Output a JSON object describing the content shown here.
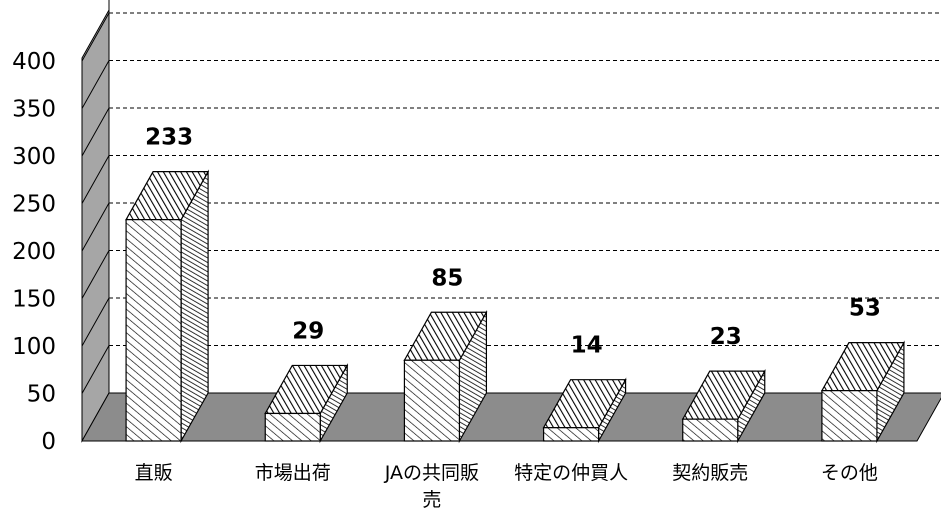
{
  "chart_data": {
    "type": "bar",
    "categories": [
      "直販",
      "市場出荷",
      "JAの共同販売",
      "特定の仲買人",
      "契約販売",
      "その他"
    ],
    "category_lines": [
      [
        "直販"
      ],
      [
        "市場出荷"
      ],
      [
        "JAの共同販",
        "売"
      ],
      [
        "特定の仲買人"
      ],
      [
        "契約販売"
      ],
      [
        "その他"
      ]
    ],
    "values": [
      233,
      29,
      85,
      14,
      23,
      53
    ],
    "data_labels": [
      "233",
      "29",
      "85",
      "14",
      "23",
      "53"
    ],
    "ylim": [
      0,
      400
    ],
    "yticks": [
      0,
      50,
      100,
      150,
      200,
      250,
      300,
      350,
      400
    ],
    "ytick_labels": [
      "0",
      "50",
      "100",
      "150",
      "200",
      "250",
      "300",
      "350",
      "400"
    ],
    "grid": true,
    "style": "3d-column",
    "colors": {
      "floor": "#8c8c8c",
      "side_wall": "#a6a6a6",
      "bar_fill": "#ffffff",
      "stroke": "#000000"
    }
  }
}
